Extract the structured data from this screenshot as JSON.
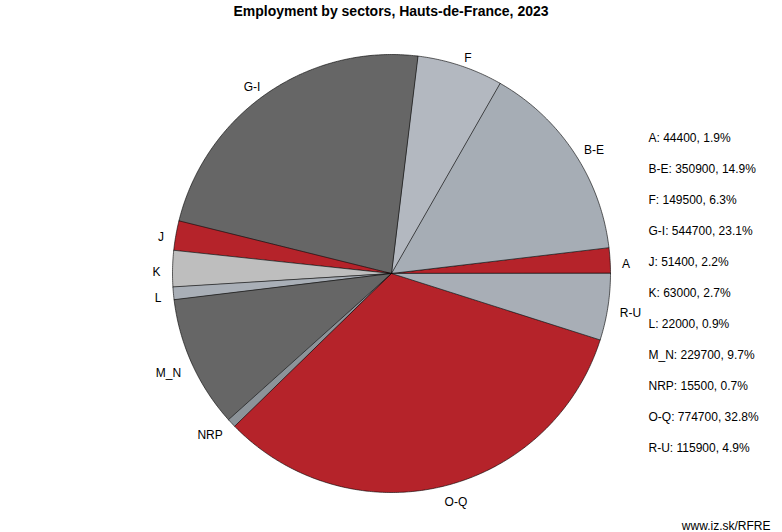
{
  "chart_data": {
    "type": "pie",
    "title": "Employment by sectors, Hauts-de-France, 2023",
    "categories": [
      "A",
      "B-E",
      "F",
      "G-I",
      "J",
      "K",
      "L",
      "M_N",
      "NRP",
      "O-Q",
      "R-U"
    ],
    "values": [
      44400,
      350900,
      149500,
      544700,
      51400,
      63000,
      22000,
      229700,
      15500,
      774700,
      115900
    ],
    "value_labels": [
      "A: 44400, 1.9%",
      "B-E: 350900, 14.9%",
      "F: 149500, 6.3%",
      "G-I: 544700, 23.1%",
      "J: 51400, 2.2%",
      "K: 63000, 2.7%",
      "L: 22000, 0.9%",
      "M_N: 229700, 9.7%",
      "NRP: 15500, 0.7%",
      "O-Q: 774700, 32.8%",
      "R-U: 115900, 4.9%"
    ],
    "colors": [
      "#b5232a",
      "#a6adb5",
      "#b3b8c0",
      "#666666",
      "#b5232a",
      "#bebebe",
      "#a9afb7",
      "#666666",
      "#8c9399",
      "#b5232a",
      "#a8aeb6"
    ],
    "source": "www.iz.sk/RFRE"
  }
}
